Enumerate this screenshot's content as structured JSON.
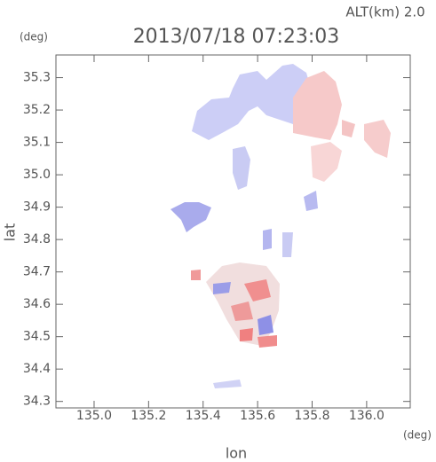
{
  "chart_data": {
    "type": "map",
    "title": "2013/07/18 07:23:03",
    "subtitle": "ALT(km)  2.0",
    "x_label": "lon",
    "x_unit": "(deg)",
    "y_label": "lat",
    "y_unit": "(deg)",
    "xlim": [
      134.86,
      136.16
    ],
    "xticks": [
      {
        "value": 135,
        "label": "135.0"
      },
      135.2,
      135.4,
      135.6,
      135.8,
      {
        "value": 136,
        "label": "136.0"
      }
    ],
    "ylim": [
      34.28,
      35.37
    ],
    "yticks": [
      34.3,
      34.4,
      34.5,
      34.6,
      34.7,
      34.8,
      34.9,
      {
        "value": 35,
        "label": "35.0"
      },
      35.1,
      35.2,
      35.3
    ]
  }
}
